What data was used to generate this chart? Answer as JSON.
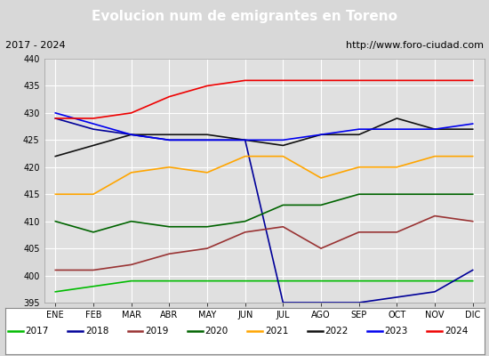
{
  "title": "Evolucion num de emigrantes en Toreno",
  "subtitle_left": "2017 - 2024",
  "subtitle_right": "http://www.foro-ciudad.com",
  "months": [
    "ENE",
    "FEB",
    "MAR",
    "ABR",
    "MAY",
    "JUN",
    "JUL",
    "AGO",
    "SEP",
    "OCT",
    "NOV",
    "DIC"
  ],
  "series": [
    {
      "year": "2017",
      "color": "#00cc00",
      "data": [
        397,
        398,
        399,
        399,
        402,
        399,
        399,
        399,
        399,
        399,
        399,
        399
      ]
    },
    {
      "year": "2018",
      "color": "#000099",
      "data": [
        429,
        427,
        426,
        425,
        425,
        425,
        395,
        395,
        395,
        396,
        397,
        401
      ]
    },
    {
      "year": "2019",
      "color": "#990000",
      "data": [
        428,
        429,
        430,
        433,
        435,
        436,
        436,
        436,
        436,
        436,
        436,
        436
      ]
    },
    {
      "year": "2020",
      "color": "#006400",
      "data": [
        410,
        408,
        410,
        409,
        409,
        410,
        413,
        413,
        415,
        415,
        415,
        415
      ]
    },
    {
      "year": "2021",
      "color": "#ffa500",
      "data": [
        415,
        415,
        419,
        420,
        419,
        422,
        422,
        418,
        420,
        420,
        422,
        422
      ]
    },
    {
      "year": "2022",
      "color": "#111111",
      "data": [
        422,
        424,
        426,
        426,
        426,
        425,
        424,
        426,
        426,
        429,
        427,
        427
      ]
    },
    {
      "year": "2023",
      "color": "#0000ff",
      "data": [
        430,
        428,
        426,
        425,
        425,
        425,
        425,
        426,
        427,
        427,
        427,
        428
      ]
    },
    {
      "year": "2024",
      "color": "#ff0000",
      "data": [
        401,
        401,
        402,
        404,
        405,
        408,
        409,
        405,
        408,
        408,
        411,
        410
      ]
    }
  ],
  "ylim": [
    395,
    440
  ],
  "yticks": [
    395,
    400,
    405,
    410,
    415,
    420,
    425,
    430,
    435,
    440
  ],
  "title_background": "#4e87c4",
  "title_color": "#ffffff",
  "title_fontsize": 11,
  "sub_background": "#d8d8d8",
  "plot_background": "#e0e0e0",
  "grid_color": "#ffffff",
  "legend_background": "#ffffff",
  "tick_fontsize": 7,
  "subtitle_fontsize": 8
}
